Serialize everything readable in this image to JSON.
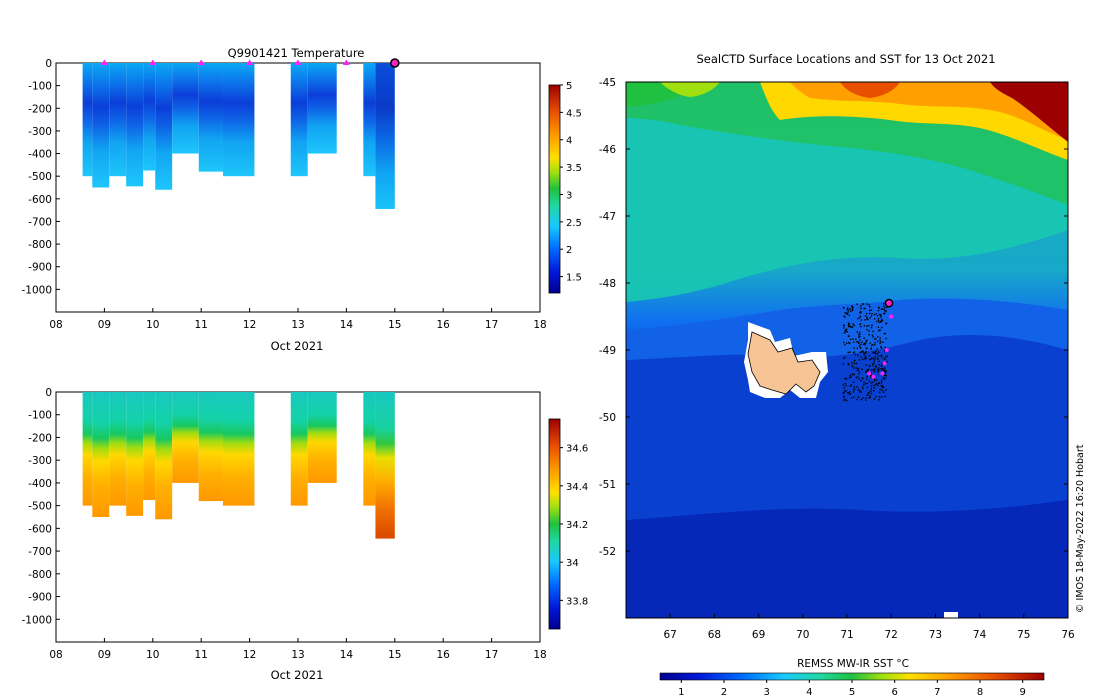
{
  "chart_data": [
    {
      "type": "heatmap",
      "title": "Q9901421  Temperature",
      "xlabel": "Oct 2021",
      "ylabel": "",
      "xlim": [
        8,
        18
      ],
      "ylim": [
        -1100,
        0
      ],
      "x_ticks": [
        "08",
        "09",
        "10",
        "11",
        "12",
        "13",
        "14",
        "15",
        "16",
        "17",
        "18"
      ],
      "y_ticks": [
        "0",
        "-100",
        "-200",
        "-300",
        "-400",
        "-500",
        "-600",
        "-700",
        "-800",
        "-900",
        "-1000"
      ],
      "colorbar": {
        "min": 1.2,
        "max": 5.0,
        "ticks": [
          "5",
          "4.5",
          "4",
          "3.5",
          "3",
          "2.5",
          "2",
          "1.5"
        ]
      },
      "profile_markers": [
        9.0,
        10.0,
        11.0,
        12.0,
        13.0,
        14.0
      ],
      "latest_marker": 15.0,
      "profiles": [
        {
          "t0": 8.55,
          "t1": 8.75,
          "depth": 500
        },
        {
          "t0": 8.75,
          "t1": 9.1,
          "depth": 550
        },
        {
          "t0": 9.1,
          "t1": 9.45,
          "depth": 500
        },
        {
          "t0": 9.45,
          "t1": 9.8,
          "depth": 545
        },
        {
          "t0": 9.8,
          "t1": 10.05,
          "depth": 475
        },
        {
          "t0": 10.05,
          "t1": 10.4,
          "depth": 560
        },
        {
          "t0": 10.4,
          "t1": 10.95,
          "depth": 400
        },
        {
          "t0": 10.95,
          "t1": 11.45,
          "depth": 480
        },
        {
          "t0": 11.45,
          "t1": 12.1,
          "depth": 500
        },
        {
          "t0": 12.85,
          "t1": 13.2,
          "depth": 500
        },
        {
          "t0": 13.2,
          "t1": 13.8,
          "depth": 400
        },
        {
          "t0": 14.35,
          "t1": 14.6,
          "depth": 500
        },
        {
          "t0": 14.6,
          "t1": 15.0,
          "depth": 645
        }
      ]
    },
    {
      "type": "heatmap",
      "title": "",
      "xlabel": "Oct 2021",
      "ylabel": "",
      "xlim": [
        8,
        18
      ],
      "ylim": [
        -1100,
        0
      ],
      "x_ticks": [
        "08",
        "09",
        "10",
        "11",
        "12",
        "13",
        "14",
        "15",
        "16",
        "17",
        "18"
      ],
      "y_ticks": [
        "0",
        "-100",
        "-200",
        "-300",
        "-400",
        "-500",
        "-600",
        "-700",
        "-800",
        "-900",
        "-1000"
      ],
      "colorbar": {
        "min": 33.65,
        "max": 34.75,
        "ticks": [
          "34.6",
          "34.4",
          "34.2",
          "34",
          "33.8"
        ]
      },
      "profiles": [
        {
          "t0": 8.55,
          "t1": 8.75,
          "depth": 500
        },
        {
          "t0": 8.75,
          "t1": 9.1,
          "depth": 550
        },
        {
          "t0": 9.1,
          "t1": 9.45,
          "depth": 500
        },
        {
          "t0": 9.45,
          "t1": 9.8,
          "depth": 545
        },
        {
          "t0": 9.8,
          "t1": 10.05,
          "depth": 475
        },
        {
          "t0": 10.05,
          "t1": 10.4,
          "depth": 560
        },
        {
          "t0": 10.4,
          "t1": 10.95,
          "depth": 400
        },
        {
          "t0": 10.95,
          "t1": 11.45,
          "depth": 480
        },
        {
          "t0": 11.45,
          "t1": 12.1,
          "depth": 500
        },
        {
          "t0": 12.85,
          "t1": 13.2,
          "depth": 500
        },
        {
          "t0": 13.2,
          "t1": 13.8,
          "depth": 400
        },
        {
          "t0": 14.35,
          "t1": 14.6,
          "depth": 500
        },
        {
          "t0": 14.6,
          "t1": 15.0,
          "depth": 645
        }
      ]
    },
    {
      "type": "heatmap",
      "title": "SealCTD Surface Locations and SST for 13 Oct 2021",
      "xlabel": "",
      "ylabel": "",
      "xlim": [
        66,
        76
      ],
      "ylim": [
        -53,
        -45
      ],
      "x_ticks": [
        "67",
        "68",
        "69",
        "70",
        "71",
        "72",
        "73",
        "74",
        "75",
        "76"
      ],
      "y_ticks": [
        "-45",
        "-46",
        "-47",
        "-48",
        "-49",
        "-50",
        "-51",
        "-52"
      ],
      "colorbar": {
        "label": "REMSS MW-IR SST °C",
        "min": 0.5,
        "max": 9.5,
        "ticks": [
          "1",
          "2",
          "3",
          "4",
          "5",
          "6",
          "7",
          "8",
          "9"
        ]
      },
      "latest_position": {
        "lon": 71.95,
        "lat": -48.3
      },
      "recent_positions": [
        {
          "lon": 72.0,
          "lat": -48.5
        },
        {
          "lon": 71.9,
          "lat": -49.0
        },
        {
          "lon": 71.85,
          "lat": -49.2
        },
        {
          "lon": 71.5,
          "lat": -49.35
        },
        {
          "lon": 71.6,
          "lat": -49.4
        },
        {
          "lon": 71.8,
          "lat": -49.35
        }
      ],
      "credit": "© IMOS 18-May-2022 16:20 Hobart"
    }
  ]
}
